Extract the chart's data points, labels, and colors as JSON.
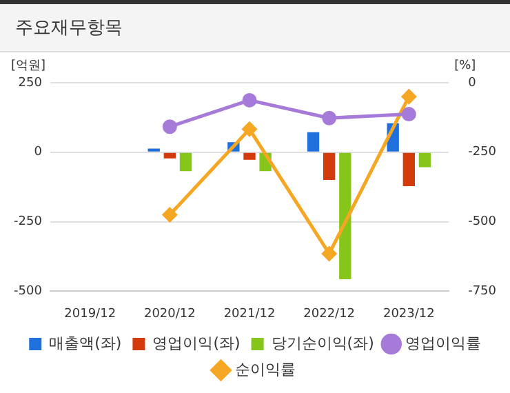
{
  "chart_data": {
    "type": "bar",
    "title": "주요재무항목",
    "ylabel": "[억원]",
    "y2label": "[%]",
    "categories": [
      "2019/12",
      "2020/12",
      "2021/12",
      "2022/12",
      "2023/12"
    ],
    "series": [
      {
        "name": "매출액(좌)",
        "color": "#1f6fdc",
        "values": [
          null,
          13,
          36,
          72,
          104
        ]
      },
      {
        "name": "영업이익(좌)",
        "color": "#d33a0c",
        "values": [
          null,
          -22,
          -27,
          -100,
          -122
        ]
      },
      {
        "name": "당기순이익(좌)",
        "color": "#86c61a",
        "values": [
          null,
          -68,
          -68,
          -457,
          -54
        ]
      },
      {
        "name": "영업이익률",
        "type": "line",
        "axis": "y2",
        "marker": "circle",
        "color": "#a57ad8",
        "values": [
          null,
          -158,
          -63,
          -127,
          -113
        ]
      },
      {
        "name": "순이익률",
        "type": "line",
        "axis": "y2",
        "marker": "diamond",
        "color": "#f5a623",
        "values": [
          null,
          -475,
          -167,
          -615,
          -50
        ]
      }
    ],
    "ylim": [
      -500,
      250
    ],
    "yticks": [
      -500,
      -250,
      0,
      250
    ],
    "y2lim": [
      -750,
      0
    ],
    "y2ticks": [
      -750,
      -500,
      -250,
      0
    ],
    "grid": "y",
    "legend": "bottom"
  }
}
